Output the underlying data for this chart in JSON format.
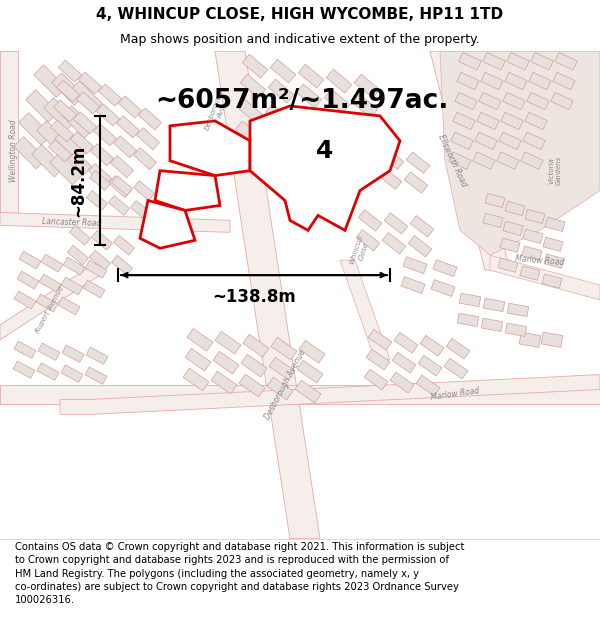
{
  "title": "4, WHINCUP CLOSE, HIGH WYCOMBE, HP11 1TD",
  "subtitle": "Map shows position and indicative extent of the property.",
  "footer": "Contains OS data © Crown copyright and database right 2021. This information is subject\nto Crown copyright and database rights 2023 and is reproduced with the permission of\nHM Land Registry. The polygons (including the associated geometry, namely x, y\nco-ordinates) are subject to Crown copyright and database rights 2023 Ordnance Survey\n100026316.",
  "area_text": "~6057m²/~1.497ac.",
  "width_text": "~138.8m",
  "height_text": "~84.2m",
  "label_4": "4",
  "map_bg": "#f9f6f2",
  "road_fill": "#f5eeea",
  "road_edge": "#e8aaaa",
  "building_fill": "#e8e0dc",
  "building_edge": "#d4a0a0",
  "highlight_color": "#dd0000",
  "highlight_fill": "#ffffff",
  "beige_block": "#ede5df",
  "title_fontsize": 11,
  "subtitle_fontsize": 9,
  "footer_fontsize": 7.2,
  "area_fontsize": 19,
  "dim_fontsize": 12,
  "label_fontsize": 18,
  "road_label_color": "#888888",
  "road_label_size": 5.5
}
